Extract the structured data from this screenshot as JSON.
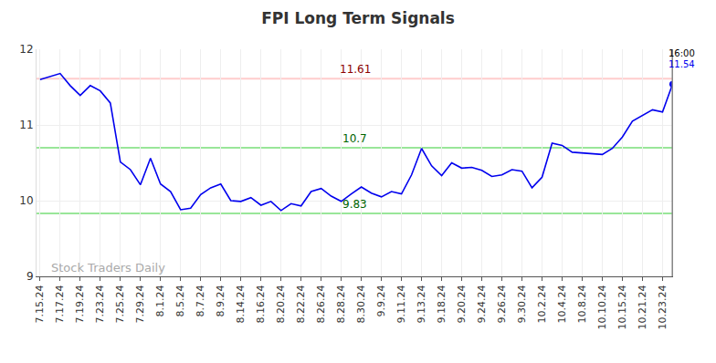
{
  "chart_data": {
    "type": "line",
    "title": "FPI Long Term Signals",
    "categories": [
      "7.15.24",
      null,
      "7.17.24",
      null,
      "7.19.24",
      null,
      "7.23.24",
      null,
      "7.25.24",
      null,
      "7.29.24",
      null,
      "8.1.24",
      null,
      "8.5.24",
      null,
      "8.7.24",
      null,
      "8.9.24",
      null,
      "8.14.24",
      null,
      "8.16.24",
      null,
      "8.20.24",
      null,
      "8.22.24",
      null,
      "8.26.24",
      null,
      "8.28.24",
      null,
      "8.30.24",
      null,
      "9.9.24",
      null,
      "9.11.24",
      null,
      "9.13.24",
      null,
      "9.18.24",
      null,
      "9.20.24",
      null,
      "9.24.24",
      null,
      "9.26.24",
      null,
      "9.30.24",
      null,
      "10.2.24",
      null,
      "10.4.24",
      null,
      "10.8.24",
      null,
      "10.10.24",
      null,
      "10.15.24",
      null,
      "10.21.24",
      null,
      "10.23.24",
      null
    ],
    "values": [
      11.6,
      11.64,
      11.68,
      11.52,
      11.39,
      11.52,
      11.45,
      11.29,
      10.51,
      10.41,
      10.21,
      10.56,
      10.22,
      10.12,
      9.88,
      9.9,
      10.08,
      10.17,
      10.22,
      10.0,
      9.99,
      10.04,
      9.94,
      9.99,
      9.87,
      9.96,
      9.93,
      10.12,
      10.16,
      10.06,
      9.99,
      10.09,
      10.18,
      10.1,
      10.05,
      10.12,
      10.09,
      10.34,
      10.69,
      10.46,
      10.33,
      10.5,
      10.43,
      10.44,
      10.4,
      10.32,
      10.34,
      10.41,
      10.39,
      10.17,
      10.31,
      10.76,
      10.73,
      10.64,
      10.63,
      10.62,
      10.61,
      10.69,
      10.84,
      11.05,
      11.12,
      11.2,
      11.17,
      11.54
    ],
    "color": "#0000ee",
    "ylim": [
      9,
      12
    ],
    "yticks": [
      9,
      10,
      11,
      12
    ],
    "grid": true,
    "reference_lines": [
      {
        "value": 11.61,
        "label": "11.61",
        "color": "#ffcccc",
        "label_color": "#8b0000"
      },
      {
        "value": 10.7,
        "label": "10.7",
        "color": "#99e699",
        "label_color": "#006400"
      },
      {
        "value": 9.83,
        "label": "9.83",
        "color": "#99e699",
        "label_color": "#006400"
      }
    ],
    "last_point": {
      "time": "16:00",
      "label": "11.54",
      "color": "#0000ee"
    },
    "watermark": "Stock Traders Daily"
  }
}
